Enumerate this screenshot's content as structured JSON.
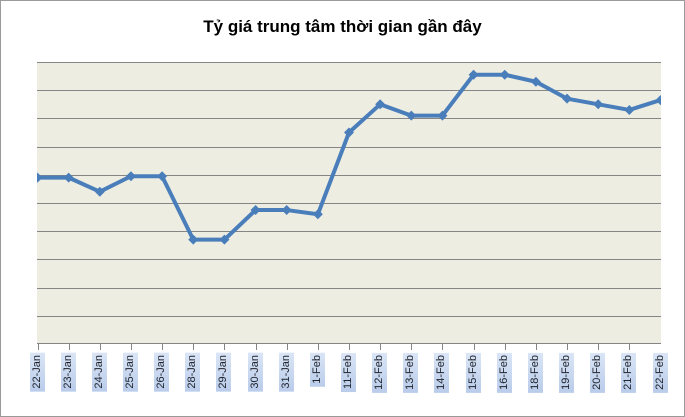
{
  "chart": {
    "title": "Tỷ giá trung tâm thời gian gần đây"
  },
  "chart_data": {
    "type": "line",
    "title": "Tỷ giá trung tâm thời gian gần đây",
    "categories": [
      "22-Jan",
      "23-Jan",
      "24-Jan",
      "25-Jan",
      "26-Jan",
      "28-Jan",
      "29-Jan",
      "30-Jan",
      "31-Jan",
      "1-Feb",
      "11-Feb",
      "12-Feb",
      "13-Feb",
      "14-Feb",
      "15-Feb",
      "16-Feb",
      "18-Feb",
      "19-Feb",
      "20-Feb",
      "21-Feb",
      "22-Feb"
    ],
    "values": [
      5.9,
      5.9,
      5.4,
      5.95,
      5.95,
      3.7,
      3.7,
      4.75,
      4.75,
      4.6,
      7.5,
      8.5,
      8.1,
      8.1,
      9.55,
      9.55,
      9.3,
      8.7,
      8.5,
      8.3,
      8.65
    ],
    "values_unit": "gridline divisions above x-axis (y-axis has no tick labels; values estimated from gridlines)",
    "xlabel": "",
    "ylabel": "",
    "ylim": [
      0,
      10
    ],
    "gridline_bands": 10,
    "grid": "horizontal",
    "legend": "none",
    "marker": "diamond",
    "colors": {
      "line": "#4a7ebb",
      "marker": "#4a7ebb",
      "plot_bg": "#eeede2",
      "gridline": "#858585",
      "label_bg_light": "#dae5f6",
      "label_bg_dark": "#b9ccea",
      "label_text": "#20242e",
      "frame_border": "#9b9b9b",
      "title_color": "#000000"
    }
  }
}
